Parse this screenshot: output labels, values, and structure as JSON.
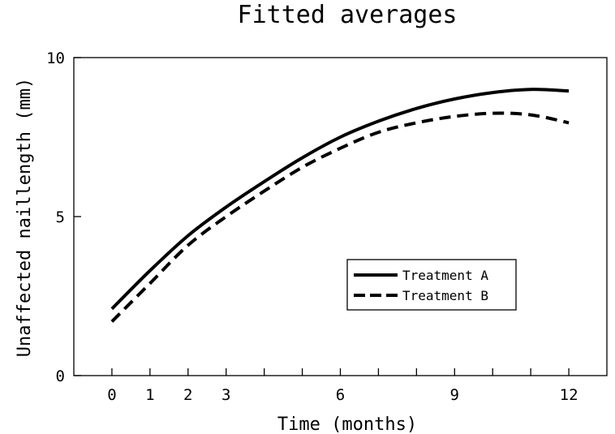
{
  "chart_data": {
    "type": "line",
    "title": "Fitted averages",
    "xlabel": "Time (months)",
    "ylabel": "Unaffected naillength (mm)",
    "xlim": [
      -1,
      13
    ],
    "ylim": [
      0,
      10
    ],
    "x_ticks": [
      0,
      1,
      2,
      3,
      6,
      9,
      12
    ],
    "x_minor_ticks": [
      4,
      5,
      7,
      8,
      10,
      11
    ],
    "y_ticks": [
      0,
      5,
      10
    ],
    "grid": false,
    "legend_position": "lower-right",
    "x": [
      0,
      1,
      2,
      3,
      4,
      5,
      6,
      7,
      8,
      9,
      10,
      11,
      12
    ],
    "series": [
      {
        "name": "Treatment A",
        "style": "solid",
        "color": "#000000",
        "values": [
          2.1,
          3.3,
          4.4,
          5.3,
          6.1,
          6.85,
          7.5,
          8.0,
          8.4,
          8.7,
          8.9,
          9.0,
          8.95
        ]
      },
      {
        "name": "Treatment B",
        "style": "dashed",
        "color": "#000000",
        "values": [
          1.7,
          2.9,
          4.1,
          5.0,
          5.8,
          6.55,
          7.15,
          7.65,
          7.95,
          8.15,
          8.25,
          8.2,
          7.95
        ]
      }
    ]
  }
}
